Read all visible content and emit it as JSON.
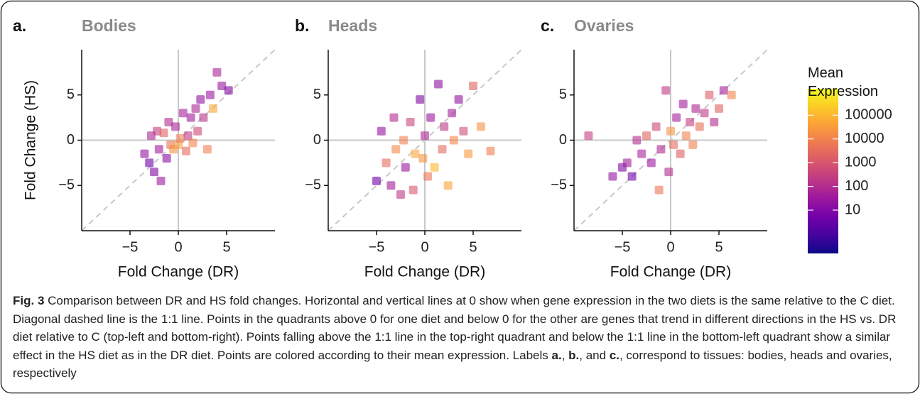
{
  "chart_data": [
    {
      "type": "scatter",
      "panel_label": "a.",
      "title": "Bodies",
      "xlabel": "Fold Change (DR)",
      "ylabel": "Fold Change (HS)",
      "x": [
        -3.5,
        -3,
        -2.8,
        -2.5,
        -2.2,
        -2,
        -1.8,
        -1.5,
        -1.2,
        -1,
        -0.8,
        -0.5,
        -0.3,
        0,
        0.2,
        0.5,
        0.8,
        1,
        1.3,
        1.5,
        1.8,
        2,
        2.3,
        2.6,
        3,
        3.3,
        3.6,
        4,
        4.5,
        5.2
      ],
      "y": [
        -1.5,
        -2.5,
        0.5,
        -3.5,
        1,
        -1,
        -4.5,
        0.8,
        -2,
        2,
        -0.5,
        -1,
        1.5,
        -0.5,
        0.2,
        3,
        -1.2,
        0.5,
        2.5,
        -0.3,
        3.5,
        1,
        4.5,
        2.5,
        -1,
        5,
        3.5,
        7.5,
        6,
        5.5
      ],
      "expression": [
        20,
        5,
        80,
        10,
        300,
        40,
        30,
        2000,
        15,
        100,
        5000,
        20000,
        60,
        30000,
        8000,
        50,
        3000,
        200,
        40,
        10000,
        80,
        500,
        20,
        150,
        8000,
        30,
        50000,
        60,
        30,
        10
      ],
      "xlim": [
        -10,
        10
      ],
      "ylim": [
        -10,
        10
      ],
      "xticks": [
        {
          "value": -5,
          "label": "−5"
        },
        0,
        5
      ],
      "yticks": [
        {
          "value": -5,
          "label": "−5"
        },
        0,
        5
      ],
      "zero_lines": true,
      "identity_line": true
    },
    {
      "type": "scatter",
      "panel_label": "b.",
      "title": "Heads",
      "xlabel": "Fold Change (DR)",
      "x": [
        -5,
        -4.5,
        -4,
        -3.5,
        -3.2,
        -3,
        -2.5,
        -2.2,
        -2,
        -1.5,
        -1.2,
        -1,
        -0.5,
        -0.2,
        0,
        0.3,
        0.6,
        1,
        1.4,
        1.8,
        2,
        2.4,
        2.8,
        3,
        3.5,
        4,
        4.5,
        5,
        5.8,
        6.8
      ],
      "y": [
        -4.5,
        1,
        -2.5,
        -5,
        2.5,
        -1,
        -6,
        0,
        -3,
        2,
        -5.5,
        -1.5,
        4.5,
        -2,
        0.5,
        -4,
        2.5,
        -3,
        6.2,
        -1,
        1.5,
        -5,
        3,
        0,
        4.5,
        1,
        -1.5,
        6,
        1.5,
        -1.2
      ],
      "expression": [
        5,
        20,
        3000,
        40,
        100,
        15000,
        200,
        8000,
        30,
        400,
        1000,
        50000,
        10,
        20000,
        70,
        5000,
        30,
        100000,
        15,
        3000,
        200,
        40000,
        50,
        10000,
        20,
        600,
        30000,
        2000,
        20000,
        8000
      ],
      "xlim": [
        -10,
        10
      ],
      "ylim": [
        -10,
        10
      ],
      "xticks": [
        {
          "value": -5,
          "label": "−5"
        },
        0,
        5
      ],
      "yticks": [
        {
          "value": -5,
          "label": "−5"
        },
        0,
        5
      ],
      "zero_lines": true,
      "identity_line": true
    },
    {
      "type": "scatter",
      "panel_label": "c.",
      "title": "Ovaries",
      "xlabel": "Fold Change (DR)",
      "x": [
        -8.5,
        -6,
        -5,
        -4.5,
        -4,
        -3.5,
        -3,
        -2.5,
        -2,
        -1.5,
        -1.2,
        -1,
        -0.5,
        -0.2,
        0,
        0.3,
        0.6,
        1,
        1.3,
        1.6,
        2,
        2.3,
        2.6,
        3,
        3.5,
        4,
        4.5,
        5,
        5.5,
        6.3
      ],
      "y": [
        0.5,
        -4,
        -3,
        -2.5,
        -4,
        0,
        -1.5,
        0.5,
        -2.5,
        1.5,
        -5.5,
        -1,
        5.5,
        -3.5,
        1,
        -0.5,
        2.5,
        -1.5,
        4,
        0.5,
        2,
        -0.5,
        3.5,
        1.5,
        3,
        5,
        2,
        3.5,
        5.5,
        5
      ],
      "expression": [
        300,
        20,
        10,
        40,
        5,
        100,
        60,
        2000,
        30,
        500,
        5000,
        80,
        200,
        100,
        20000,
        3000,
        50,
        1500,
        40,
        10000,
        300,
        8000,
        70,
        4000,
        200,
        1500,
        100,
        2000,
        50,
        10000
      ],
      "xlim": [
        -10,
        10
      ],
      "ylim": [
        -10,
        10
      ],
      "xticks": [
        {
          "value": -5,
          "label": "−5"
        },
        0,
        5
      ],
      "yticks": [
        {
          "value": -5,
          "label": "−5"
        },
        0,
        5
      ],
      "zero_lines": true,
      "identity_line": true
    }
  ],
  "colorbar": {
    "title": "Mean Expression",
    "colormap": [
      "#0d0887",
      "#46039f",
      "#7201a8",
      "#9c179e",
      "#bd3786",
      "#d8576b",
      "#ed7953",
      "#fb9f3a",
      "#fdca26",
      "#f0f921"
    ],
    "log_scale": true,
    "lim": [
      0.15,
      1300000
    ],
    "ticks": [
      10,
      100,
      1000,
      10000,
      100000
    ]
  },
  "caption": [
    {
      "text": "Fig. 3",
      "bold": true
    },
    {
      "text": " Comparison between DR and HS fold changes. Horizontal and vertical lines at 0 show when gene expression in the two diets is the same relative to the C diet. Diagonal dashed line is the 1:1 line. Points in the quadrants above 0 for one diet and below 0 for the other are genes that trend in different directions in the HS vs. DR diet relative to C (top-left and bottom-right). Points falling above the 1:1 line in the top-right quadrant and below the 1:1 line in the bottom-left quadrant show a similar effect in the HS diet as in the DR diet. Points are colored according to their mean expression. Labels "
    },
    {
      "text": "a.",
      "bold": true
    },
    {
      "text": ", "
    },
    {
      "text": "b.",
      "bold": true
    },
    {
      "text": ", and "
    },
    {
      "text": "c.",
      "bold": true
    },
    {
      "text": ", correspond to tissues: bodies, heads and ovaries, respectively"
    }
  ]
}
